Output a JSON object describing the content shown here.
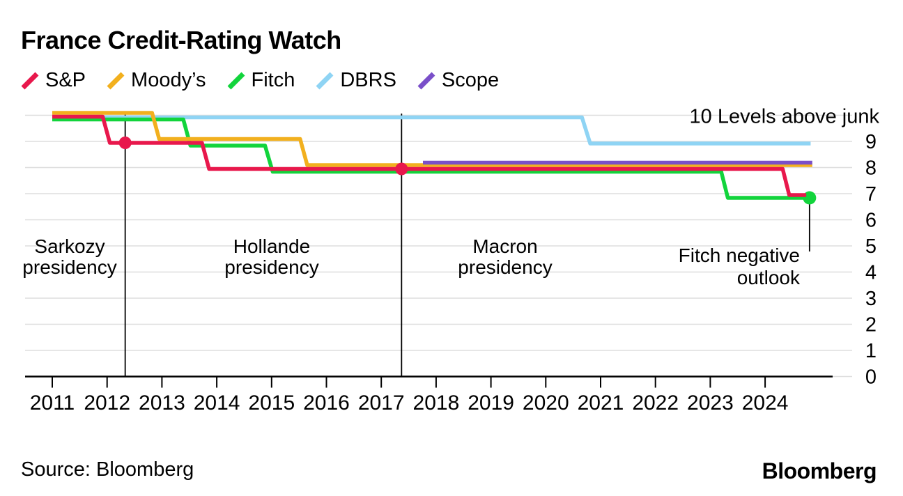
{
  "title": "France Credit-Rating Watch",
  "legend": [
    {
      "label": "S&P",
      "color": "#e8184c"
    },
    {
      "label": "Moody’s",
      "color": "#f2b01e"
    },
    {
      "label": "Fitch",
      "color": "#12d43c"
    },
    {
      "label": "DBRS",
      "color": "#8fd4f4"
    },
    {
      "label": "Scope",
      "color": "#7a4fc9"
    }
  ],
  "source": "Source: Bloomberg",
  "logo": "Bloomberg",
  "chart_data": {
    "type": "line",
    "title": "France Credit-Rating Watch",
    "ylabel": "Levels above junk",
    "ylim": [
      0,
      10
    ],
    "xlim": [
      2011,
      2025
    ],
    "grid": true,
    "x_ticks": [
      2011,
      2012,
      2013,
      2014,
      2015,
      2016,
      2017,
      2018,
      2019,
      2020,
      2021,
      2022,
      2023,
      2024
    ],
    "y_ticks": [
      0,
      1,
      2,
      3,
      4,
      5,
      6,
      7,
      8,
      9
    ],
    "y_top_label": "10 Levels above junk",
    "series": [
      {
        "name": "DBRS",
        "color": "#8fd4f4",
        "points": [
          [
            2011.0,
            10
          ],
          [
            2020.66,
            10
          ],
          [
            2020.81,
            9
          ],
          [
            2024.83,
            9
          ]
        ]
      },
      {
        "name": "Fitch",
        "color": "#12d43c",
        "points": [
          [
            2011.0,
            10
          ],
          [
            2013.39,
            10
          ],
          [
            2013.52,
            9
          ],
          [
            2014.88,
            9
          ],
          [
            2015.02,
            8
          ],
          [
            2023.2,
            8
          ],
          [
            2023.32,
            7
          ],
          [
            2024.81,
            7
          ]
        ],
        "end_marker": true
      },
      {
        "name": "Moody’s",
        "color": "#f2b01e",
        "points": [
          [
            2011.0,
            10
          ],
          [
            2012.82,
            10
          ],
          [
            2012.95,
            9
          ],
          [
            2015.52,
            9
          ],
          [
            2015.65,
            8
          ],
          [
            2024.86,
            8
          ]
        ]
      },
      {
        "name": "S&P",
        "color": "#e8184c",
        "points": [
          [
            2011.0,
            10
          ],
          [
            2011.92,
            10
          ],
          [
            2012.05,
            9
          ],
          [
            2013.73,
            9
          ],
          [
            2013.86,
            8
          ],
          [
            2024.32,
            8
          ],
          [
            2024.44,
            7
          ],
          [
            2024.75,
            7
          ]
        ],
        "markers": [
          [
            2012.33,
            9
          ],
          [
            2017.37,
            8
          ]
        ]
      },
      {
        "name": "Scope",
        "color": "#7a4fc9",
        "points": [
          [
            2017.76,
            8
          ],
          [
            2024.86,
            8
          ]
        ]
      }
    ],
    "presidency_lines": [
      2012.33,
      2017.37
    ],
    "presidency_labels": [
      {
        "text": [
          "Sarkozy",
          "presidency"
        ]
      },
      {
        "text": [
          "Hollande",
          "presidency"
        ]
      },
      {
        "text": [
          "Macron",
          "presidency"
        ]
      }
    ],
    "annotation": {
      "text": [
        "Fitch negative",
        "outlook"
      ],
      "year": 2024.81,
      "level": 7
    }
  }
}
